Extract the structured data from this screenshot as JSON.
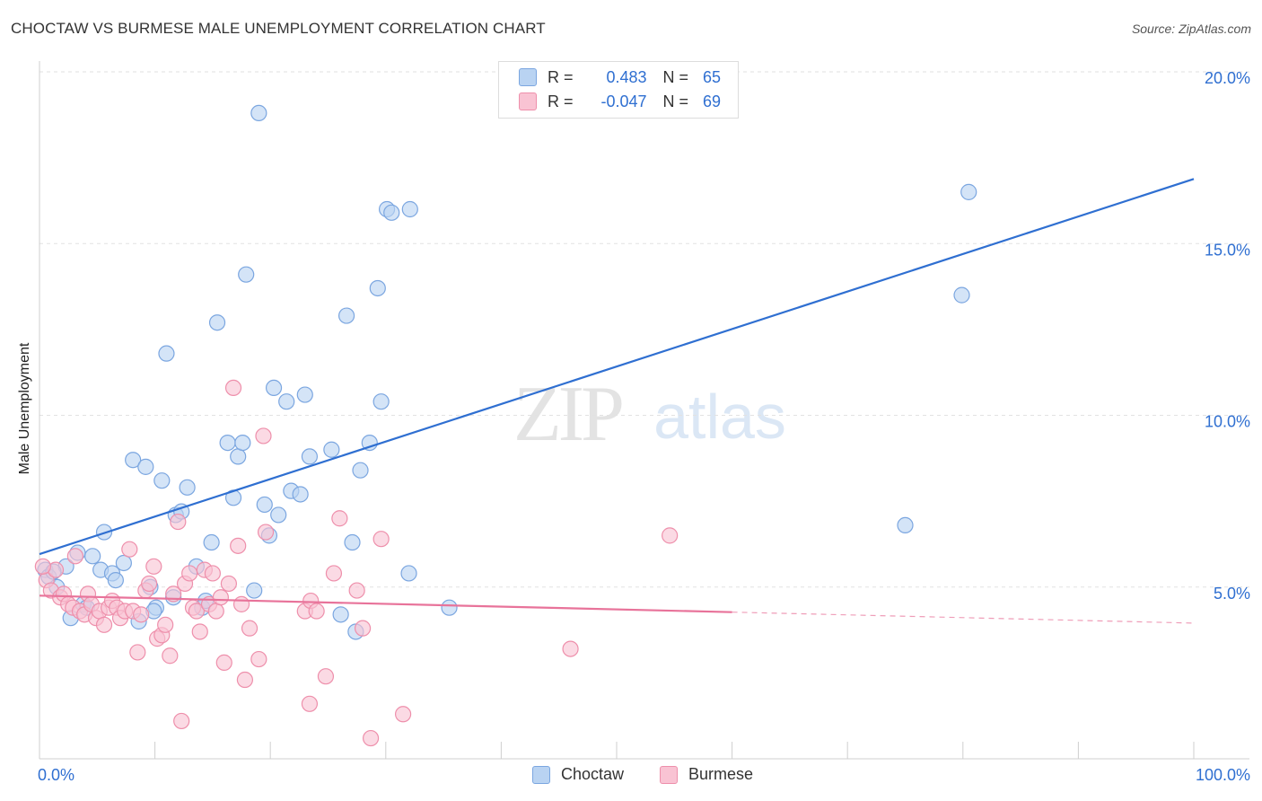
{
  "header": {
    "title": "CHOCTAW VS BURMESE MALE UNEMPLOYMENT CORRELATION CHART",
    "source": "Source: ZipAtlas.com"
  },
  "watermark": {
    "zip": "ZIP",
    "atlas": "atlas"
  },
  "legend": {
    "rows": [
      {
        "r_label": "R =",
        "r_value": "0.483",
        "n_label": "N =",
        "n_value": "65"
      },
      {
        "r_label": "R =",
        "r_value": "-0.047",
        "n_label": "N =",
        "n_value": "69"
      }
    ],
    "series_names": [
      "Choctaw",
      "Burmese"
    ]
  },
  "colors": {
    "choctaw_fill": "#b9d3f2",
    "choctaw_stroke": "#7ba6e0",
    "choctaw_line": "#2f6fd1",
    "burmese_fill": "#f9c3d3",
    "burmese_stroke": "#ee8fab",
    "burmese_line": "#e8739a",
    "value_text": "#2f6fd1",
    "grid": "#e2e2e2"
  },
  "chart_data": {
    "type": "scatter",
    "title": "CHOCTAW VS BURMESE MALE UNEMPLOYMENT CORRELATION CHART",
    "xlabel": "",
    "ylabel": "Male Unemployment",
    "xlim": [
      0,
      100
    ],
    "ylim": [
      0,
      20
    ],
    "x_tick_labels": [
      "0.0%",
      "100.0%"
    ],
    "y_ticks": [
      5,
      10,
      15,
      20
    ],
    "y_tick_labels": [
      "5.0%",
      "10.0%",
      "15.0%",
      "20.0%"
    ],
    "grid": "horizontal dashed",
    "legend_position": "top-center",
    "series": [
      {
        "name": "Choctaw",
        "r": 0.483,
        "n": 65,
        "trend": {
          "x": [
            0,
            100
          ],
          "y": [
            5.96,
            16.88
          ],
          "dashed_from": null
        },
        "points": [
          [
            0.5,
            5.5
          ],
          [
            0.8,
            5.3
          ],
          [
            1.5,
            5.0
          ],
          [
            2.3,
            5.6
          ],
          [
            2.7,
            4.1
          ],
          [
            3.3,
            6.0
          ],
          [
            3.8,
            4.5
          ],
          [
            4.1,
            4.4
          ],
          [
            4.6,
            5.9
          ],
          [
            5.3,
            5.5
          ],
          [
            5.6,
            6.6
          ],
          [
            6.3,
            5.4
          ],
          [
            6.6,
            5.2
          ],
          [
            7.3,
            5.7
          ],
          [
            8.1,
            8.7
          ],
          [
            8.6,
            4.0
          ],
          [
            9.2,
            8.5
          ],
          [
            9.6,
            5.0
          ],
          [
            10.1,
            4.4
          ],
          [
            10.6,
            8.1
          ],
          [
            11.0,
            11.8
          ],
          [
            11.6,
            4.7
          ],
          [
            11.8,
            7.1
          ],
          [
            12.3,
            7.2
          ],
          [
            12.8,
            7.9
          ],
          [
            13.6,
            5.6
          ],
          [
            14.1,
            4.4
          ],
          [
            14.4,
            4.6
          ],
          [
            14.9,
            6.3
          ],
          [
            15.4,
            12.7
          ],
          [
            16.3,
            9.2
          ],
          [
            16.8,
            7.6
          ],
          [
            17.2,
            8.8
          ],
          [
            17.6,
            9.2
          ],
          [
            17.9,
            14.1
          ],
          [
            18.6,
            4.9
          ],
          [
            19.0,
            18.8
          ],
          [
            19.5,
            7.4
          ],
          [
            19.9,
            6.5
          ],
          [
            20.3,
            10.8
          ],
          [
            20.7,
            7.1
          ],
          [
            21.4,
            10.4
          ],
          [
            21.8,
            7.8
          ],
          [
            22.6,
            7.7
          ],
          [
            23.0,
            10.6
          ],
          [
            23.4,
            8.8
          ],
          [
            25.3,
            9.0
          ],
          [
            26.1,
            4.2
          ],
          [
            26.6,
            12.9
          ],
          [
            27.1,
            6.3
          ],
          [
            27.4,
            3.7
          ],
          [
            27.8,
            8.4
          ],
          [
            28.6,
            9.2
          ],
          [
            29.3,
            13.7
          ],
          [
            29.6,
            10.4
          ],
          [
            30.1,
            16.0
          ],
          [
            30.5,
            15.9
          ],
          [
            32.1,
            16.0
          ],
          [
            32.0,
            5.4
          ],
          [
            35.5,
            4.4
          ],
          [
            75.0,
            6.8
          ],
          [
            79.9,
            13.5
          ],
          [
            80.5,
            16.5
          ],
          [
            1.2,
            5.45
          ],
          [
            9.9,
            4.3
          ]
        ]
      },
      {
        "name": "Burmese",
        "r": -0.047,
        "n": 69,
        "trend": {
          "x": [
            0,
            100
          ],
          "y": [
            4.75,
            3.95
          ],
          "dashed_from": 60
        },
        "points": [
          [
            0.6,
            5.2
          ],
          [
            1.0,
            4.9
          ],
          [
            1.4,
            5.5
          ],
          [
            1.8,
            4.7
          ],
          [
            2.1,
            4.8
          ],
          [
            2.5,
            4.5
          ],
          [
            2.9,
            4.4
          ],
          [
            3.1,
            5.9
          ],
          [
            3.5,
            4.3
          ],
          [
            3.9,
            4.2
          ],
          [
            4.2,
            4.8
          ],
          [
            4.5,
            4.5
          ],
          [
            4.9,
            4.1
          ],
          [
            5.2,
            4.3
          ],
          [
            5.6,
            3.9
          ],
          [
            6.0,
            4.4
          ],
          [
            6.3,
            4.6
          ],
          [
            6.7,
            4.4
          ],
          [
            7.0,
            4.1
          ],
          [
            7.4,
            4.3
          ],
          [
            7.8,
            6.1
          ],
          [
            8.1,
            4.3
          ],
          [
            8.5,
            3.1
          ],
          [
            8.8,
            4.2
          ],
          [
            9.2,
            4.9
          ],
          [
            9.5,
            5.1
          ],
          [
            9.9,
            5.6
          ],
          [
            10.2,
            3.5
          ],
          [
            10.6,
            3.6
          ],
          [
            10.9,
            3.9
          ],
          [
            11.3,
            3.0
          ],
          [
            11.6,
            4.8
          ],
          [
            12.0,
            6.9
          ],
          [
            12.3,
            1.1
          ],
          [
            12.6,
            5.1
          ],
          [
            13.0,
            5.4
          ],
          [
            13.3,
            4.4
          ],
          [
            13.6,
            4.3
          ],
          [
            13.9,
            3.7
          ],
          [
            14.3,
            5.5
          ],
          [
            14.7,
            4.5
          ],
          [
            15.0,
            5.4
          ],
          [
            15.3,
            4.3
          ],
          [
            15.7,
            4.7
          ],
          [
            16.0,
            2.8
          ],
          [
            16.4,
            5.1
          ],
          [
            16.8,
            10.8
          ],
          [
            17.2,
            6.2
          ],
          [
            17.5,
            4.5
          ],
          [
            17.8,
            2.3
          ],
          [
            18.2,
            3.8
          ],
          [
            19.0,
            2.9
          ],
          [
            19.6,
            6.6
          ],
          [
            19.4,
            9.4
          ],
          [
            23.0,
            4.3
          ],
          [
            23.5,
            4.6
          ],
          [
            24.0,
            4.3
          ],
          [
            24.8,
            2.4
          ],
          [
            25.5,
            5.4
          ],
          [
            26.0,
            7.0
          ],
          [
            27.5,
            4.9
          ],
          [
            28.0,
            3.8
          ],
          [
            28.7,
            0.6
          ],
          [
            29.6,
            6.4
          ],
          [
            31.5,
            1.3
          ],
          [
            23.4,
            1.6
          ],
          [
            46.0,
            3.2
          ],
          [
            54.6,
            6.5
          ],
          [
            0.3,
            5.6
          ]
        ]
      }
    ]
  }
}
